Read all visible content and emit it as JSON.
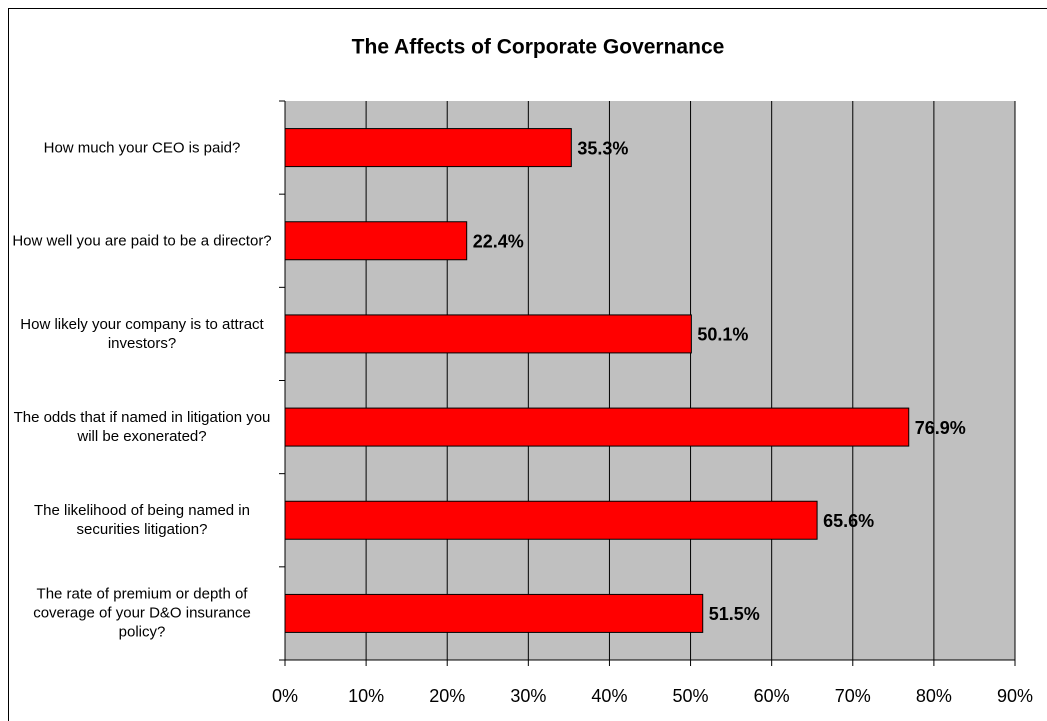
{
  "chart_data": {
    "type": "bar",
    "orientation": "horizontal",
    "title": "The Affects of Corporate Governance",
    "categories": [
      "How much your CEO is paid?",
      "How well you are paid to be a director?",
      "How likely your company is to attract investors?",
      "The odds that if named in litigation you will be exonerated?",
      "The likelihood of being named in securities litigation?",
      "The rate of premium or depth of coverage of your D&O insurance policy?"
    ],
    "values": [
      35.3,
      22.4,
      50.1,
      76.9,
      65.6,
      51.5
    ],
    "value_labels": [
      "35.3%",
      "22.4%",
      "50.1%",
      "76.9%",
      "65.6%",
      "51.5%"
    ],
    "color": "#ff0000",
    "xlim": [
      0,
      90
    ],
    "xticks": [
      {
        "value": 0,
        "label": "0%"
      },
      {
        "value": 10,
        "label": "10%"
      },
      {
        "value": 20,
        "label": "20%"
      },
      {
        "value": 30,
        "label": "30%"
      },
      {
        "value": 40,
        "label": "40%"
      },
      {
        "value": 50,
        "label": "50%"
      },
      {
        "value": 60,
        "label": "60%"
      },
      {
        "value": 70,
        "label": "70%"
      },
      {
        "value": 80,
        "label": "80%"
      },
      {
        "value": 90,
        "label": "90%"
      }
    ],
    "grid": true
  }
}
